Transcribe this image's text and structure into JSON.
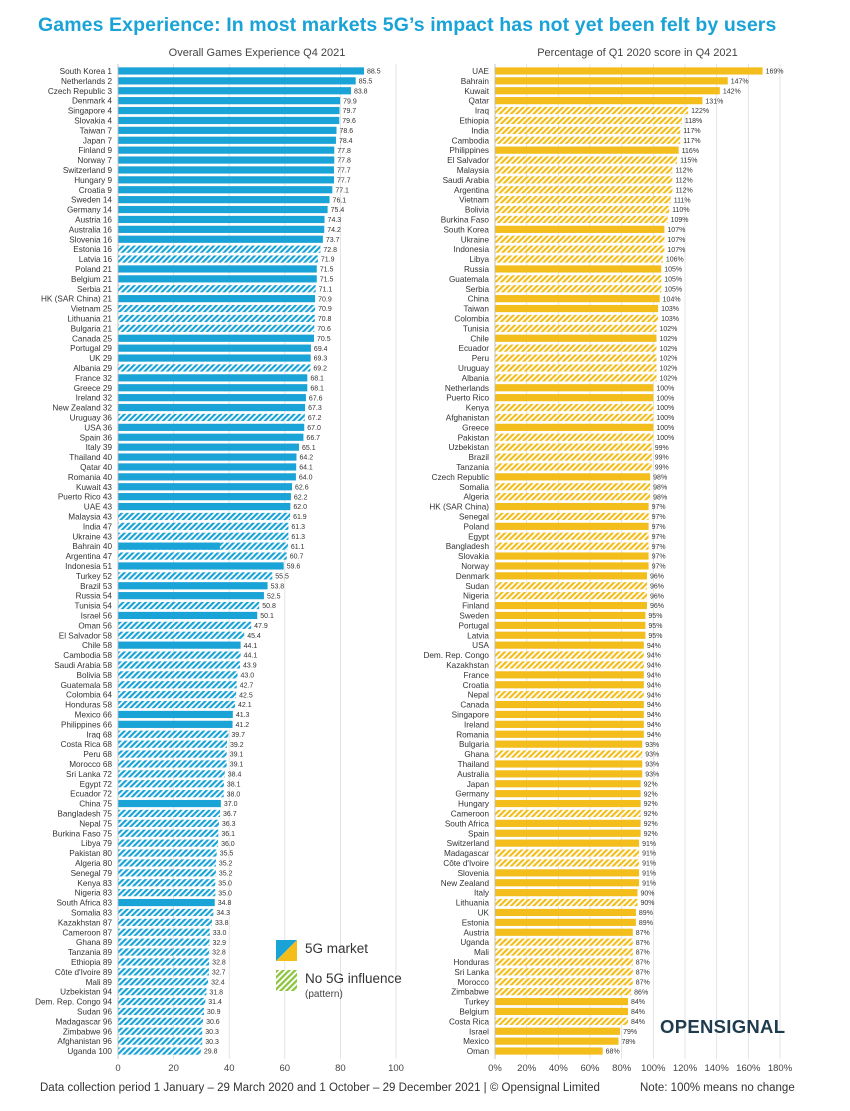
{
  "page": {
    "title": "Games Experience: In most markets 5G’s impact has not yet been felt by users",
    "footer": "Data collection period 1 January – 29 March 2020 and 1 October – 29 December 2021 | © Opensignal Limited",
    "note": "Note: 100% means no change",
    "brand": "OPENSIGNAL"
  },
  "colors": {
    "blue": "#1aa3d6",
    "yellow": "#f3bd1b",
    "green": "#8cc63f"
  },
  "legend": {
    "items": [
      {
        "label": "5G market",
        "sub": ""
      },
      {
        "label": "No 5G influence",
        "sub": "(pattern)"
      }
    ]
  },
  "chart_data": [
    {
      "type": "bar",
      "orientation": "horizontal",
      "title": "Overall Games Experience Q4 2021",
      "xlim": [
        0,
        100
      ],
      "xticks": [
        "0",
        "20",
        "40",
        "60",
        "80",
        "100"
      ],
      "grid": true,
      "categories": [
        "South Korea 1",
        "Netherlands 2",
        "Czech Republic 3",
        "Denmark 4",
        "Singapore 4",
        "Slovakia 4",
        "Taiwan 7",
        "Japan 7",
        "Finland 9",
        "Norway 7",
        "Switzerland 9",
        "Hungary 9",
        "Croatia 9",
        "Sweden 14",
        "Germany 14",
        "Austria 16",
        "Australia 16",
        "Slovenia 16",
        "Estonia 16",
        "Latvia 16",
        "Poland 21",
        "Belgium 21",
        "Serbia 21",
        "HK (SAR China) 21",
        "Vietnam 25",
        "Lithuania 21",
        "Bulgaria 21",
        "Canada 25",
        "Portugal 29",
        "UK 29",
        "Albania 29",
        "France 32",
        "Greece 29",
        "Ireland 32",
        "New Zealand 32",
        "Uruguay 36",
        "USA 36",
        "Spain 36",
        "Italy 39",
        "Thailand 40",
        "Qatar 40",
        "Romania 40",
        "Kuwait 43",
        "Puerto Rico 43",
        "UAE 43",
        "Malaysia 43",
        "India 47",
        "Ukraine 43",
        "Bahrain 40",
        "Argentina 47",
        "Indonesia 51",
        "Turkey 52",
        "Brazil 53",
        "Russia 54",
        "Tunisia 54",
        "Israel 56",
        "Oman 56",
        "El Salvador 58",
        "Chile 58",
        "Cambodia 58",
        "Saudi Arabia 58",
        "Bolivia 58",
        "Guatemala 58",
        "Colombia 64",
        "Honduras 58",
        "Mexico 66",
        "Philippines 66",
        "Iraq 68",
        "Costa Rica 68",
        "Peru 68",
        "Morocco 68",
        "Sri Lanka 72",
        "Egypt 72",
        "Ecuador 72",
        "China 75",
        "Bangladesh 75",
        "Nepal 75",
        "Burkina Faso 75",
        "Libya 79",
        "Pakistan 80",
        "Algeria 80",
        "Senegal 79",
        "Kenya 83",
        "Nigeria 83",
        "South Africa 83",
        "Somalia 83",
        "Kazakhstan 87",
        "Cameroon 87",
        "Ghana 89",
        "Tanzania 89",
        "Ethiopia 89",
        "Côte d'Ivoire 89",
        "Mali 89",
        "Uzbekistan 94",
        "Dem. Rep. Congo 94",
        "Sudan 96",
        "Madagascar 96",
        "Zimbabwe 96",
        "Afghanistan 96",
        "Uganda 100"
      ],
      "values": [
        88.5,
        85.5,
        83.8,
        79.9,
        79.7,
        79.6,
        78.6,
        78.4,
        77.8,
        77.8,
        77.7,
        77.7,
        77.1,
        76.1,
        75.4,
        74.3,
        74.2,
        73.7,
        72.8,
        71.9,
        71.5,
        71.5,
        71.1,
        70.9,
        70.9,
        70.8,
        70.6,
        70.5,
        69.4,
        69.3,
        69.2,
        68.1,
        68.1,
        67.6,
        67.3,
        67.2,
        67.0,
        66.7,
        65.1,
        64.2,
        64.1,
        64.0,
        62.6,
        62.2,
        62.0,
        61.9,
        61.3,
        61.3,
        61.1,
        60.7,
        59.6,
        55.5,
        53.8,
        52.5,
        50.8,
        50.1,
        47.9,
        45.4,
        44.1,
        44.1,
        43.9,
        43.0,
        42.7,
        42.5,
        42.1,
        41.3,
        41.2,
        39.7,
        39.2,
        39.1,
        39.1,
        38.4,
        38.1,
        38.0,
        37.0,
        36.7,
        36.3,
        36.1,
        36.0,
        35.5,
        35.2,
        35.2,
        35.0,
        35.0,
        34.8,
        34.3,
        33.8,
        33.0,
        32.9,
        32.8,
        32.8,
        32.7,
        32.4,
        31.8,
        31.4,
        30.9,
        30.6,
        30.3,
        30.3,
        29.8
      ],
      "pattern": [
        0,
        0,
        0,
        0,
        0,
        0,
        0,
        0,
        0,
        0,
        0,
        0,
        0,
        0,
        0,
        0,
        0,
        0,
        1,
        1,
        0,
        0,
        1,
        0,
        1,
        1,
        1,
        0,
        0,
        0,
        1,
        0,
        0,
        0,
        0,
        1,
        0,
        0,
        0,
        0,
        0,
        0,
        0,
        0,
        0,
        1,
        1,
        1,
        2,
        1,
        0,
        1,
        0,
        0,
        1,
        0,
        1,
        1,
        0,
        1,
        1,
        1,
        1,
        1,
        1,
        0,
        0,
        1,
        1,
        1,
        1,
        1,
        1,
        1,
        0,
        1,
        1,
        1,
        1,
        1,
        1,
        1,
        1,
        1,
        0,
        1,
        1,
        1,
        1,
        1,
        1,
        1,
        1,
        1,
        1,
        1,
        1,
        1,
        1,
        1
      ]
    },
    {
      "type": "bar",
      "orientation": "horizontal",
      "title": "Percentage of Q1 2020 score in Q4 2021",
      "xlim": [
        0,
        180
      ],
      "xticks": [
        "0%",
        "20%",
        "40%",
        "60%",
        "80%",
        "100%",
        "120%",
        "140%",
        "160%",
        "180%"
      ],
      "grid": true,
      "categories": [
        "UAE",
        "Bahrain",
        "Kuwait",
        "Qatar",
        "Iraq",
        "Ethiopia",
        "India",
        "Cambodia",
        "Philippines",
        "El Salvador",
        "Malaysia",
        "Saudi Arabia",
        "Argentina",
        "Vietnam",
        "Bolivia",
        "Burkina Faso",
        "South Korea",
        "Ukraine",
        "Indonesia",
        "Libya",
        "Russia",
        "Guatemala",
        "Serbia",
        "China",
        "Taiwan",
        "Colombia",
        "Tunisia",
        "Chile",
        "Ecuador",
        "Peru",
        "Uruguay",
        "Albania",
        "Netherlands",
        "Puerto Rico",
        "Kenya",
        "Afghanistan",
        "Greece",
        "Pakistan",
        "Uzbekistan",
        "Brazil",
        "Tanzania",
        "Czech Republic",
        "Somalia",
        "Algeria",
        "HK (SAR China)",
        "Senegal",
        "Poland",
        "Egypt",
        "Bangladesh",
        "Slovakia",
        "Norway",
        "Denmark",
        "Sudan",
        "Nigeria",
        "Finland",
        "Sweden",
        "Portugal",
        "Latvia",
        "USA",
        "Dem. Rep. Congo",
        "Kazakhstan",
        "France",
        "Croatia",
        "Nepal",
        "Canada",
        "Singapore",
        "Ireland",
        "Romania",
        "Bulgaria",
        "Ghana",
        "Thailand",
        "Australia",
        "Japan",
        "Germany",
        "Hungary",
        "Cameroon",
        "South Africa",
        "Spain",
        "Switzerland",
        "Madagascar",
        "Côte d'Ivoire",
        "Slovenia",
        "New Zealand",
        "Italy",
        "Lithuania",
        "UK",
        "Estonia",
        "Austria",
        "Uganda",
        "Mali",
        "Honduras",
        "Sri Lanka",
        "Morocco",
        "Zimbabwe",
        "Turkey",
        "Belgium",
        "Costa Rica",
        "Israel",
        "Mexico",
        "Oman"
      ],
      "values": [
        169,
        147,
        142,
        131,
        122,
        118,
        117,
        117,
        116,
        115,
        112,
        112,
        112,
        111,
        110,
        109,
        107,
        107,
        107,
        106,
        105,
        105,
        105,
        104,
        103,
        103,
        102,
        102,
        102,
        102,
        102,
        102,
        100,
        100,
        100,
        100,
        100,
        100,
        99,
        99,
        99,
        98,
        98,
        98,
        97,
        97,
        97,
        97,
        97,
        97,
        97,
        96,
        96,
        96,
        96,
        95,
        95,
        95,
        94,
        94,
        94,
        94,
        94,
        94,
        94,
        94,
        94,
        94,
        93,
        93,
        93,
        93,
        92,
        92,
        92,
        92,
        92,
        92,
        91,
        91,
        91,
        91,
        91,
        90,
        90,
        89,
        89,
        87,
        87,
        87,
        87,
        87,
        87,
        86,
        84,
        84,
        84,
        79,
        78,
        68
      ],
      "value_labels": [
        "169%",
        "147%",
        "142%",
        "131%",
        "122%",
        "118%",
        "117%",
        "117%",
        "116%",
        "115%",
        "112%",
        "112%",
        "112%",
        "111%",
        "110%",
        "109%",
        "107%",
        "107%",
        "107%",
        "106%",
        "105%",
        "105%",
        "105%",
        "104%",
        "103%",
        "103%",
        "102%",
        "102%",
        "102%",
        "102%",
        "102%",
        "102%",
        "100%",
        "100%",
        "100%",
        "100%",
        "100%",
        "100%",
        "99%",
        "99%",
        "99%",
        "98%",
        "98%",
        "98%",
        "97%",
        "97%",
        "97%",
        "97%",
        "97%",
        "97%",
        "97%",
        "96%",
        "96%",
        "96%",
        "96%",
        "95%",
        "95%",
        "95%",
        "94%",
        "94%",
        "94%",
        "94%",
        "94%",
        "94%",
        "94%",
        "94%",
        "94%",
        "94%",
        "93%",
        "93%",
        "93%",
        "93%",
        "92%",
        "92%",
        "92%",
        "92%",
        "92%",
        "92%",
        "91%",
        "91%",
        "91%",
        "91%",
        "91%",
        "90%",
        "90%",
        "89%",
        "89%",
        "87%",
        "87%",
        "87%",
        "87%",
        "87%",
        "87%",
        "86%",
        "84%",
        "84%",
        "84%",
        "79%",
        "78%",
        "68%"
      ],
      "pattern": [
        0,
        0,
        0,
        0,
        1,
        1,
        1,
        1,
        0,
        1,
        1,
        1,
        1,
        1,
        1,
        1,
        0,
        1,
        1,
        1,
        0,
        1,
        1,
        0,
        0,
        1,
        1,
        0,
        1,
        1,
        1,
        1,
        0,
        0,
        1,
        1,
        0,
        1,
        1,
        1,
        1,
        0,
        1,
        1,
        0,
        1,
        0,
        1,
        1,
        0,
        0,
        0,
        1,
        1,
        0,
        0,
        0,
        0,
        0,
        1,
        1,
        0,
        0,
        1,
        0,
        0,
        0,
        0,
        0,
        1,
        0,
        0,
        0,
        0,
        0,
        1,
        0,
        0,
        0,
        1,
        1,
        0,
        0,
        0,
        1,
        0,
        0,
        0,
        1,
        1,
        1,
        1,
        1,
        1,
        0,
        0,
        1,
        0,
        0,
        0
      ]
    }
  ]
}
